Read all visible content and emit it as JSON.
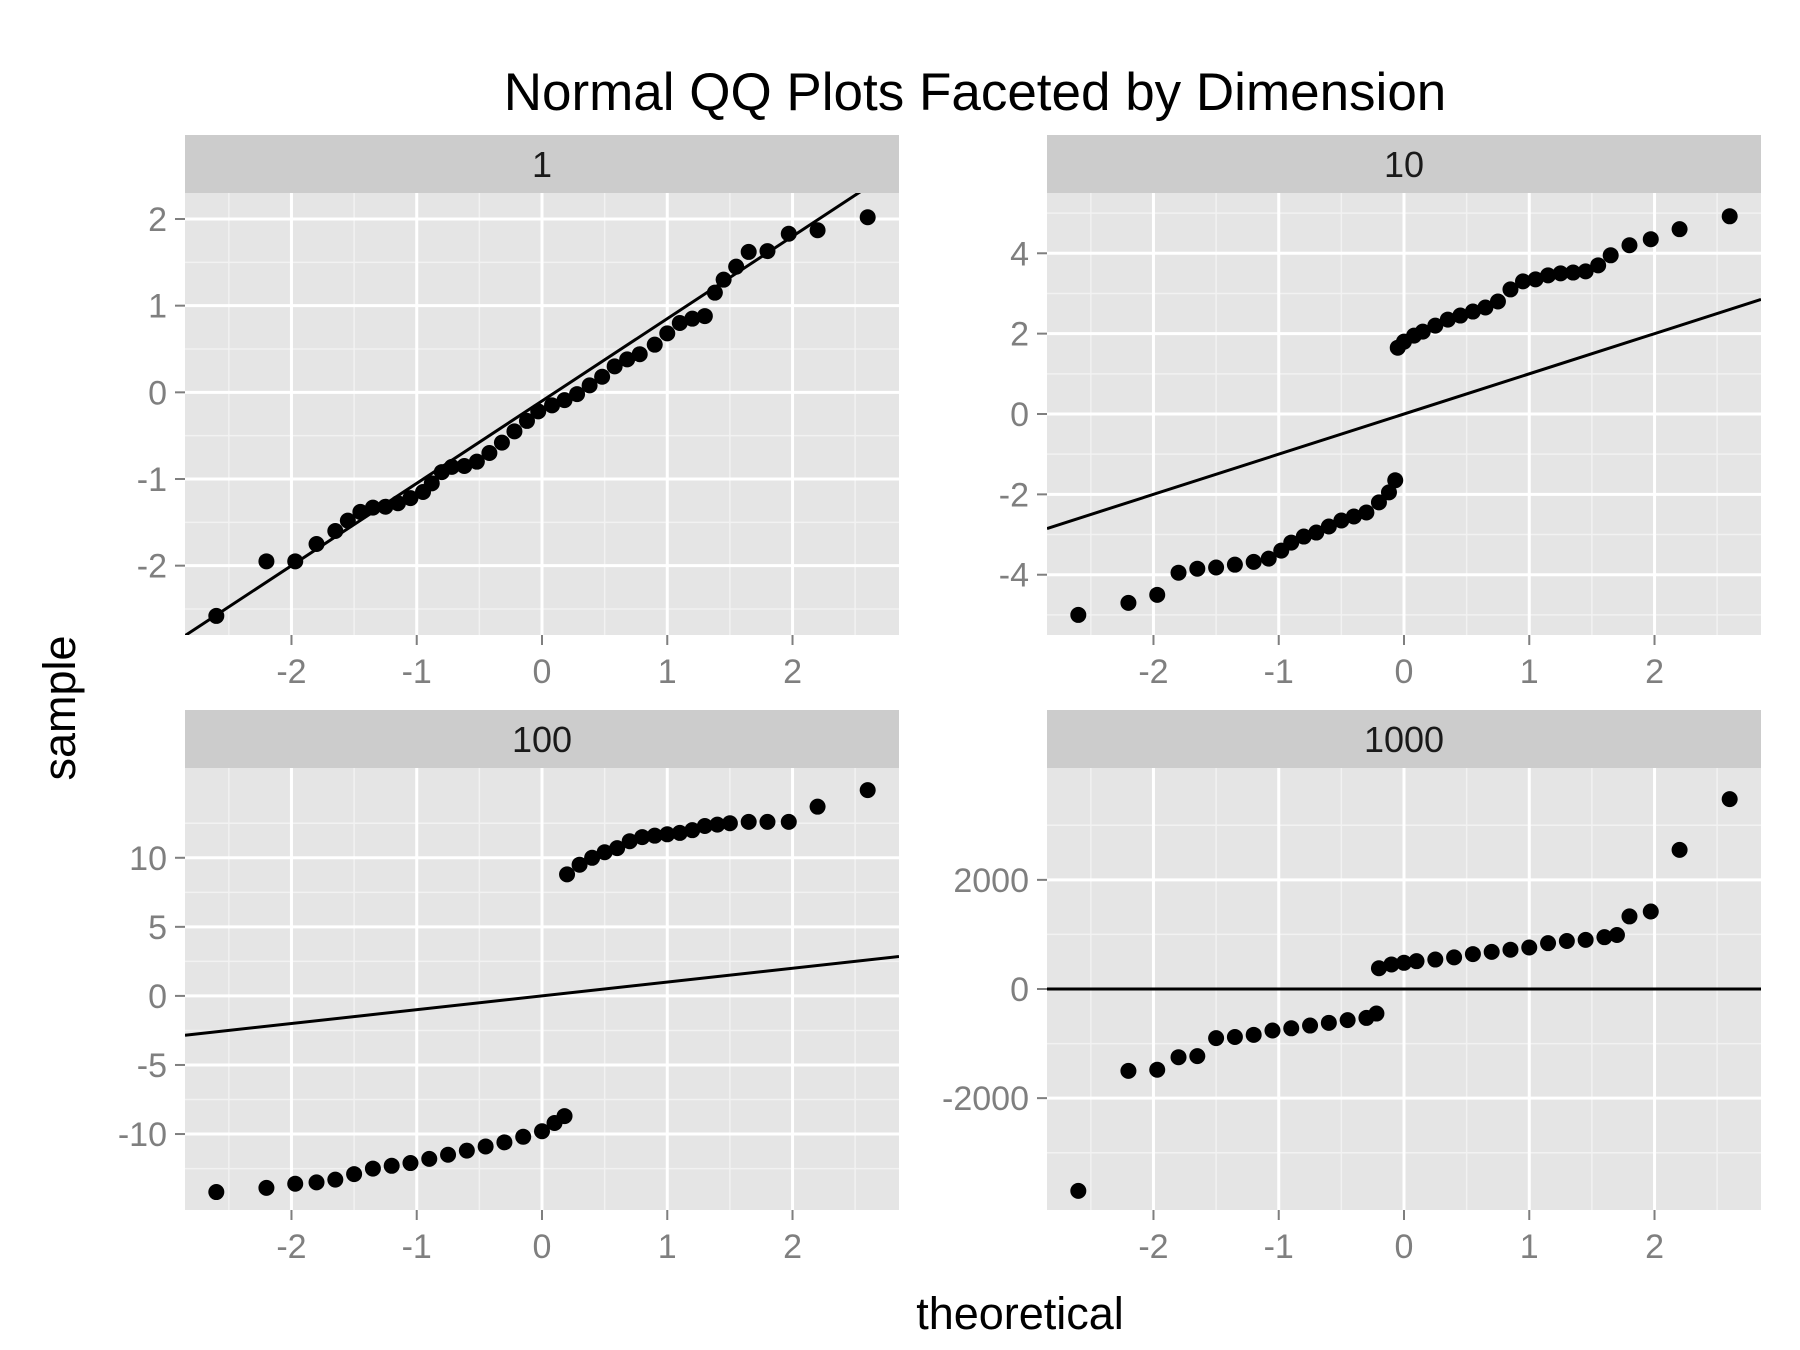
{
  "chart_data": {
    "type": "scatter",
    "title": "Normal QQ Plots Faceted by Dimension",
    "xlabel": "theoretical",
    "ylabel": "sample",
    "grid": true,
    "panels": [
      {
        "facet": "1",
        "xlim": [
          -2.85,
          2.85
        ],
        "ylim": [
          -2.8,
          2.3
        ],
        "xticks": [
          "-2",
          "-1",
          "0",
          "1",
          "2"
        ],
        "xtick_values": [
          -2,
          -1,
          0,
          1,
          2
        ],
        "yticks": [
          "-2",
          "-1",
          "0",
          "1",
          "2"
        ],
        "ytick_values": [
          -2,
          -1,
          0,
          1,
          2
        ],
        "reference_line": {
          "intercept": -0.1,
          "slope": 0.95
        },
        "points": [
          [
            -2.6,
            -2.58
          ],
          [
            -2.2,
            -1.95
          ],
          [
            -1.97,
            -1.95
          ],
          [
            -1.8,
            -1.75
          ],
          [
            -1.65,
            -1.6
          ],
          [
            -1.55,
            -1.48
          ],
          [
            -1.45,
            -1.38
          ],
          [
            -1.35,
            -1.33
          ],
          [
            -1.25,
            -1.32
          ],
          [
            -1.15,
            -1.28
          ],
          [
            -1.05,
            -1.22
          ],
          [
            -0.95,
            -1.15
          ],
          [
            -0.88,
            -1.05
          ],
          [
            -0.8,
            -0.92
          ],
          [
            -0.72,
            -0.86
          ],
          [
            -0.62,
            -0.85
          ],
          [
            -0.52,
            -0.8
          ],
          [
            -0.42,
            -0.7
          ],
          [
            -0.32,
            -0.58
          ],
          [
            -0.22,
            -0.45
          ],
          [
            -0.12,
            -0.33
          ],
          [
            -0.03,
            -0.22
          ],
          [
            0.08,
            -0.15
          ],
          [
            0.18,
            -0.09
          ],
          [
            0.28,
            -0.02
          ],
          [
            0.38,
            0.08
          ],
          [
            0.48,
            0.18
          ],
          [
            0.58,
            0.3
          ],
          [
            0.68,
            0.38
          ],
          [
            0.78,
            0.44
          ],
          [
            0.9,
            0.55
          ],
          [
            1.0,
            0.68
          ],
          [
            1.1,
            0.8
          ],
          [
            1.2,
            0.85
          ],
          [
            1.3,
            0.88
          ],
          [
            1.38,
            1.15
          ],
          [
            1.45,
            1.3
          ],
          [
            1.55,
            1.45
          ],
          [
            1.65,
            1.62
          ],
          [
            1.8,
            1.63
          ],
          [
            1.97,
            1.83
          ],
          [
            2.2,
            1.87
          ],
          [
            2.6,
            2.02
          ]
        ]
      },
      {
        "facet": "10",
        "xlim": [
          -2.85,
          2.85
        ],
        "ylim": [
          -5.5,
          5.5
        ],
        "xticks": [
          "-2",
          "-1",
          "0",
          "1",
          "2"
        ],
        "xtick_values": [
          -2,
          -1,
          0,
          1,
          2
        ],
        "yticks": [
          "-4",
          "-2",
          "0",
          "2",
          "4"
        ],
        "ytick_values": [
          -4,
          -2,
          0,
          2,
          4
        ],
        "reference_line": {
          "intercept": 0,
          "slope": 1
        },
        "points": [
          [
            -2.6,
            -5.0
          ],
          [
            -2.2,
            -4.7
          ],
          [
            -1.97,
            -4.5
          ],
          [
            -1.8,
            -3.95
          ],
          [
            -1.65,
            -3.85
          ],
          [
            -1.5,
            -3.82
          ],
          [
            -1.35,
            -3.75
          ],
          [
            -1.2,
            -3.68
          ],
          [
            -1.08,
            -3.6
          ],
          [
            -0.98,
            -3.4
          ],
          [
            -0.9,
            -3.2
          ],
          [
            -0.8,
            -3.05
          ],
          [
            -0.7,
            -2.95
          ],
          [
            -0.6,
            -2.8
          ],
          [
            -0.5,
            -2.65
          ],
          [
            -0.4,
            -2.55
          ],
          [
            -0.3,
            -2.45
          ],
          [
            -0.2,
            -2.2
          ],
          [
            -0.12,
            -1.95
          ],
          [
            -0.07,
            -1.65
          ],
          [
            -0.05,
            1.65
          ],
          [
            0.0,
            1.8
          ],
          [
            0.08,
            1.95
          ],
          [
            0.15,
            2.05
          ],
          [
            0.25,
            2.2
          ],
          [
            0.35,
            2.35
          ],
          [
            0.45,
            2.45
          ],
          [
            0.55,
            2.55
          ],
          [
            0.65,
            2.65
          ],
          [
            0.75,
            2.8
          ],
          [
            0.85,
            3.1
          ],
          [
            0.95,
            3.3
          ],
          [
            1.05,
            3.35
          ],
          [
            1.15,
            3.45
          ],
          [
            1.25,
            3.5
          ],
          [
            1.35,
            3.52
          ],
          [
            1.45,
            3.55
          ],
          [
            1.55,
            3.7
          ],
          [
            1.65,
            3.95
          ],
          [
            1.8,
            4.2
          ],
          [
            1.97,
            4.35
          ],
          [
            2.2,
            4.6
          ],
          [
            2.6,
            4.92
          ]
        ]
      },
      {
        "facet": "100",
        "xlim": [
          -2.85,
          2.85
        ],
        "ylim": [
          -15.5,
          16.5
        ],
        "xticks": [
          "-2",
          "-1",
          "0",
          "1",
          "2"
        ],
        "xtick_values": [
          -2,
          -1,
          0,
          1,
          2
        ],
        "yticks": [
          "-10",
          "-5",
          "0",
          "5",
          "10"
        ],
        "ytick_values": [
          -10,
          -5,
          0,
          5,
          10
        ],
        "reference_line": {
          "intercept": 0,
          "slope": 1
        },
        "points": [
          [
            -2.6,
            -14.2
          ],
          [
            -2.2,
            -13.9
          ],
          [
            -1.97,
            -13.6
          ],
          [
            -1.8,
            -13.5
          ],
          [
            -1.65,
            -13.3
          ],
          [
            -1.5,
            -12.9
          ],
          [
            -1.35,
            -12.5
          ],
          [
            -1.2,
            -12.3
          ],
          [
            -1.05,
            -12.1
          ],
          [
            -0.9,
            -11.8
          ],
          [
            -0.75,
            -11.5
          ],
          [
            -0.6,
            -11.2
          ],
          [
            -0.45,
            -10.9
          ],
          [
            -0.3,
            -10.6
          ],
          [
            -0.15,
            -10.2
          ],
          [
            0.0,
            -9.8
          ],
          [
            0.1,
            -9.2
          ],
          [
            0.18,
            -8.7
          ],
          [
            0.2,
            8.8
          ],
          [
            0.3,
            9.5
          ],
          [
            0.4,
            10.0
          ],
          [
            0.5,
            10.4
          ],
          [
            0.6,
            10.7
          ],
          [
            0.7,
            11.2
          ],
          [
            0.8,
            11.5
          ],
          [
            0.9,
            11.6
          ],
          [
            1.0,
            11.7
          ],
          [
            1.1,
            11.8
          ],
          [
            1.2,
            12.0
          ],
          [
            1.3,
            12.3
          ],
          [
            1.4,
            12.4
          ],
          [
            1.5,
            12.5
          ],
          [
            1.65,
            12.6
          ],
          [
            1.8,
            12.6
          ],
          [
            1.97,
            12.6
          ],
          [
            2.2,
            13.7
          ],
          [
            2.6,
            14.9
          ]
        ]
      },
      {
        "facet": "1000",
        "xlim": [
          -2.85,
          2.85
        ],
        "ylim": [
          -4050,
          4050
        ],
        "xticks": [
          "-2",
          "-1",
          "0",
          "1",
          "2"
        ],
        "xtick_values": [
          -2,
          -1,
          0,
          1,
          2
        ],
        "yticks": [
          "-2000",
          "0",
          "2000"
        ],
        "ytick_values": [
          -2000,
          0,
          2000
        ],
        "reference_line": {
          "intercept": 0,
          "slope": 0
        },
        "points": [
          [
            -2.6,
            -3700
          ],
          [
            -2.2,
            -1500
          ],
          [
            -1.97,
            -1480
          ],
          [
            -1.8,
            -1250
          ],
          [
            -1.65,
            -1230
          ],
          [
            -1.5,
            -900
          ],
          [
            -1.35,
            -880
          ],
          [
            -1.2,
            -840
          ],
          [
            -1.05,
            -760
          ],
          [
            -0.9,
            -720
          ],
          [
            -0.75,
            -670
          ],
          [
            -0.6,
            -620
          ],
          [
            -0.45,
            -570
          ],
          [
            -0.3,
            -530
          ],
          [
            -0.22,
            -450
          ],
          [
            -0.2,
            380
          ],
          [
            -0.1,
            450
          ],
          [
            0.0,
            480
          ],
          [
            0.1,
            510
          ],
          [
            0.25,
            540
          ],
          [
            0.4,
            580
          ],
          [
            0.55,
            640
          ],
          [
            0.7,
            680
          ],
          [
            0.85,
            720
          ],
          [
            1.0,
            760
          ],
          [
            1.15,
            840
          ],
          [
            1.3,
            880
          ],
          [
            1.45,
            900
          ],
          [
            1.6,
            950
          ],
          [
            1.7,
            990
          ],
          [
            1.8,
            1330
          ],
          [
            1.97,
            1420
          ],
          [
            2.2,
            2550
          ],
          [
            2.6,
            3480
          ]
        ]
      }
    ]
  }
}
